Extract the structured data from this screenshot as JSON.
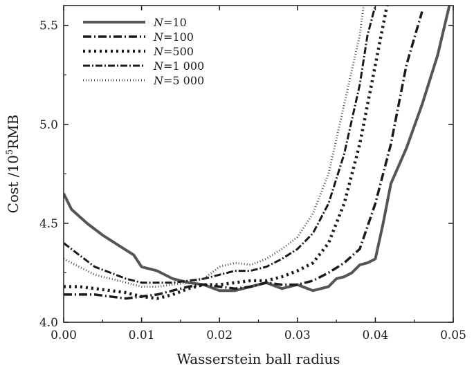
{
  "chart_data": {
    "type": "line",
    "xlabel": "Wasserstein ball radius",
    "ylabel_prefix": "Cost /10",
    "ylabel_superscript": "5",
    "ylabel_suffix": "RMB",
    "xlim": [
      0.0,
      0.05
    ],
    "ylim": [
      4.0,
      5.6
    ],
    "xticks": [
      0.0,
      0.01,
      0.02,
      0.03,
      0.04,
      0.05
    ],
    "xtick_labels": [
      "0.00",
      "0.01",
      "0.02",
      "0.03",
      "0.04",
      "0.05"
    ],
    "yticks": [
      4.0,
      4.5,
      5.0,
      5.5
    ],
    "ytick_labels": [
      "4.0",
      "4.5",
      "5.0",
      "5.5"
    ],
    "grid": false,
    "legend_position": "top-left",
    "series": [
      {
        "legend_prefix": "N",
        "legend_suffix": "=10",
        "color": "#555555",
        "dash": "",
        "width": 4,
        "x": [
          0.0,
          0.001,
          0.003,
          0.005,
          0.007,
          0.009,
          0.01,
          0.012,
          0.014,
          0.016,
          0.018,
          0.02,
          0.022,
          0.024,
          0.026,
          0.028,
          0.03,
          0.032,
          0.034,
          0.035,
          0.036,
          0.037,
          0.038,
          0.039,
          0.04,
          0.041,
          0.042,
          0.044,
          0.046,
          0.048,
          0.0495
        ],
        "y": [
          4.65,
          4.57,
          4.5,
          4.44,
          4.39,
          4.34,
          4.28,
          4.26,
          4.22,
          4.2,
          4.19,
          4.16,
          4.16,
          4.18,
          4.2,
          4.17,
          4.19,
          4.16,
          4.18,
          4.22,
          4.23,
          4.25,
          4.29,
          4.3,
          4.32,
          4.5,
          4.7,
          4.88,
          5.1,
          5.35,
          5.6
        ]
      },
      {
        "legend_prefix": "N",
        "legend_suffix": "=100",
        "color": "#1a1a1a",
        "dash": "12 4 2 4",
        "width": 3.5,
        "x": [
          0.0,
          0.002,
          0.004,
          0.006,
          0.008,
          0.01,
          0.012,
          0.014,
          0.016,
          0.018,
          0.02,
          0.022,
          0.024,
          0.026,
          0.028,
          0.03,
          0.032,
          0.034,
          0.036,
          0.038,
          0.04,
          0.042,
          0.044,
          0.046
        ],
        "y": [
          4.14,
          4.14,
          4.14,
          4.13,
          4.12,
          4.13,
          4.14,
          4.16,
          4.18,
          4.19,
          4.18,
          4.17,
          4.18,
          4.2,
          4.19,
          4.19,
          4.21,
          4.25,
          4.3,
          4.37,
          4.6,
          4.9,
          5.3,
          5.57
        ]
      },
      {
        "legend_prefix": "N",
        "legend_suffix": "=500",
        "color": "#1a1a1a",
        "dash": "3 5",
        "width": 4.5,
        "x": [
          0.0,
          0.002,
          0.004,
          0.006,
          0.008,
          0.01,
          0.012,
          0.014,
          0.016,
          0.018,
          0.02,
          0.022,
          0.024,
          0.026,
          0.028,
          0.03,
          0.032,
          0.034,
          0.036,
          0.038,
          0.04,
          0.0415
        ],
        "y": [
          4.18,
          4.18,
          4.17,
          4.16,
          4.15,
          4.13,
          4.12,
          4.14,
          4.17,
          4.19,
          4.19,
          4.2,
          4.21,
          4.21,
          4.23,
          4.26,
          4.3,
          4.4,
          4.6,
          4.9,
          5.3,
          5.6
        ]
      },
      {
        "legend_prefix": "N",
        "legend_suffix": "=1  000",
        "color": "#1a1a1a",
        "dash": "10 3 2 3",
        "width": 3,
        "x": [
          0.0,
          0.002,
          0.004,
          0.006,
          0.008,
          0.01,
          0.012,
          0.014,
          0.016,
          0.018,
          0.02,
          0.022,
          0.024,
          0.026,
          0.028,
          0.03,
          0.032,
          0.034,
          0.036,
          0.038,
          0.039,
          0.04
        ],
        "y": [
          4.4,
          4.34,
          4.28,
          4.25,
          4.22,
          4.2,
          4.2,
          4.2,
          4.21,
          4.22,
          4.24,
          4.26,
          4.26,
          4.28,
          4.32,
          4.37,
          4.45,
          4.6,
          4.85,
          5.2,
          5.45,
          5.6
        ]
      },
      {
        "legend_prefix": "N",
        "legend_suffix": "=5  000",
        "color": "#444444",
        "dash": "1 3",
        "width": 3,
        "x": [
          0.0,
          0.002,
          0.004,
          0.006,
          0.008,
          0.01,
          0.012,
          0.014,
          0.016,
          0.018,
          0.02,
          0.022,
          0.024,
          0.026,
          0.028,
          0.03,
          0.032,
          0.034,
          0.036,
          0.038,
          0.0385
        ],
        "y": [
          4.32,
          4.28,
          4.24,
          4.22,
          4.2,
          4.18,
          4.18,
          4.19,
          4.2,
          4.22,
          4.28,
          4.3,
          4.29,
          4.32,
          4.37,
          4.43,
          4.55,
          4.75,
          5.1,
          5.45,
          5.6
        ]
      }
    ]
  }
}
